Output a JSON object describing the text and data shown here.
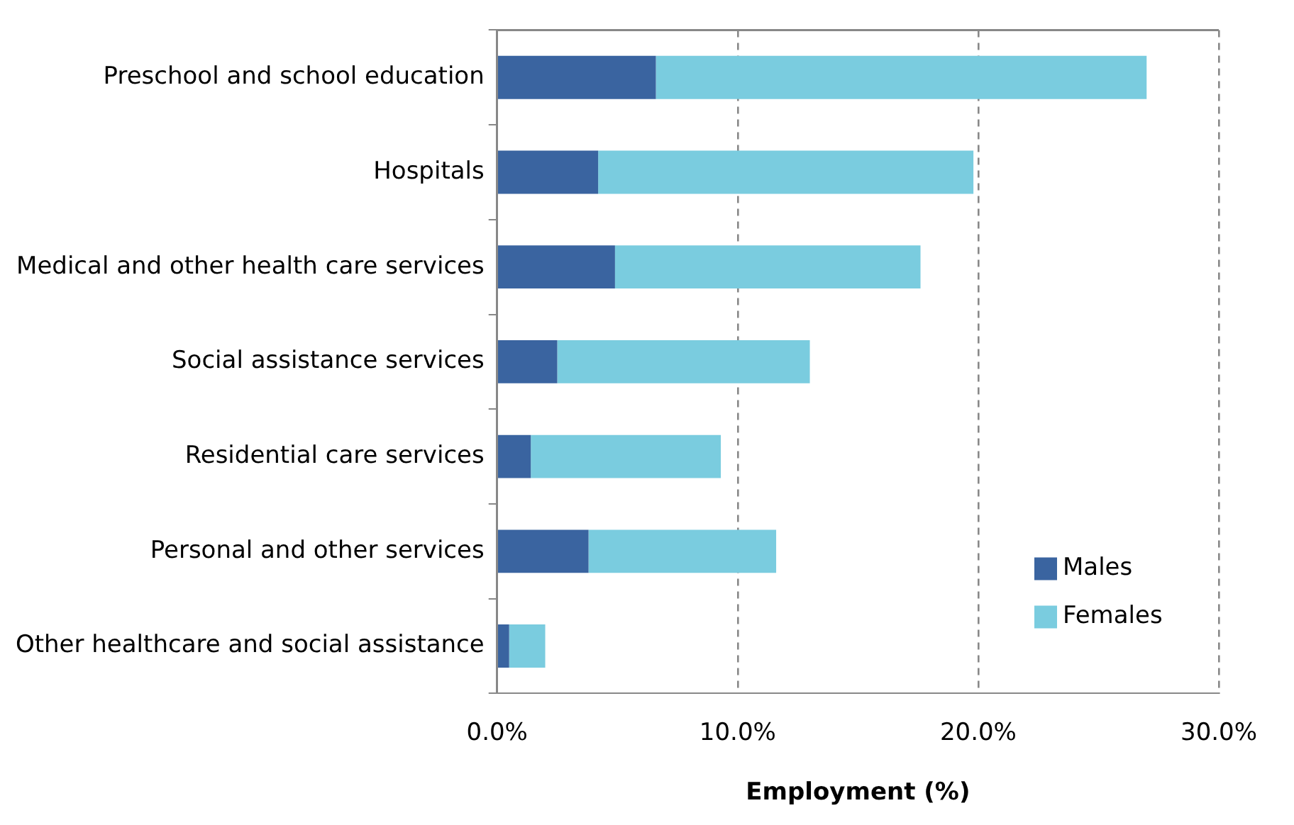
{
  "chart_data": {
    "type": "bar",
    "orientation": "horizontal",
    "stacked": true,
    "xlabel": "Employment (%)",
    "categories": [
      "Preschool and school education",
      "Hospitals",
      "Medical and other health care services",
      "Social assistance services",
      "Residential care services",
      "Personal and other services",
      "Other healthcare and social assistance"
    ],
    "series": [
      {
        "name": "Males",
        "color": "#3a64a0",
        "values": [
          6.6,
          4.2,
          4.9,
          2.5,
          1.4,
          3.8,
          0.5
        ]
      },
      {
        "name": "Females",
        "color": "#7accdf",
        "values": [
          20.4,
          15.6,
          12.7,
          10.5,
          7.9,
          7.8,
          1.5
        ]
      }
    ],
    "xlim": [
      0,
      30
    ],
    "xticks": [
      {
        "value": 0,
        "label": "0.0%"
      },
      {
        "value": 10,
        "label": "10.0%"
      },
      {
        "value": 20,
        "label": "20.0%"
      },
      {
        "value": 30,
        "label": "30.0%"
      }
    ],
    "grid": "x",
    "legend": "bottom right"
  }
}
